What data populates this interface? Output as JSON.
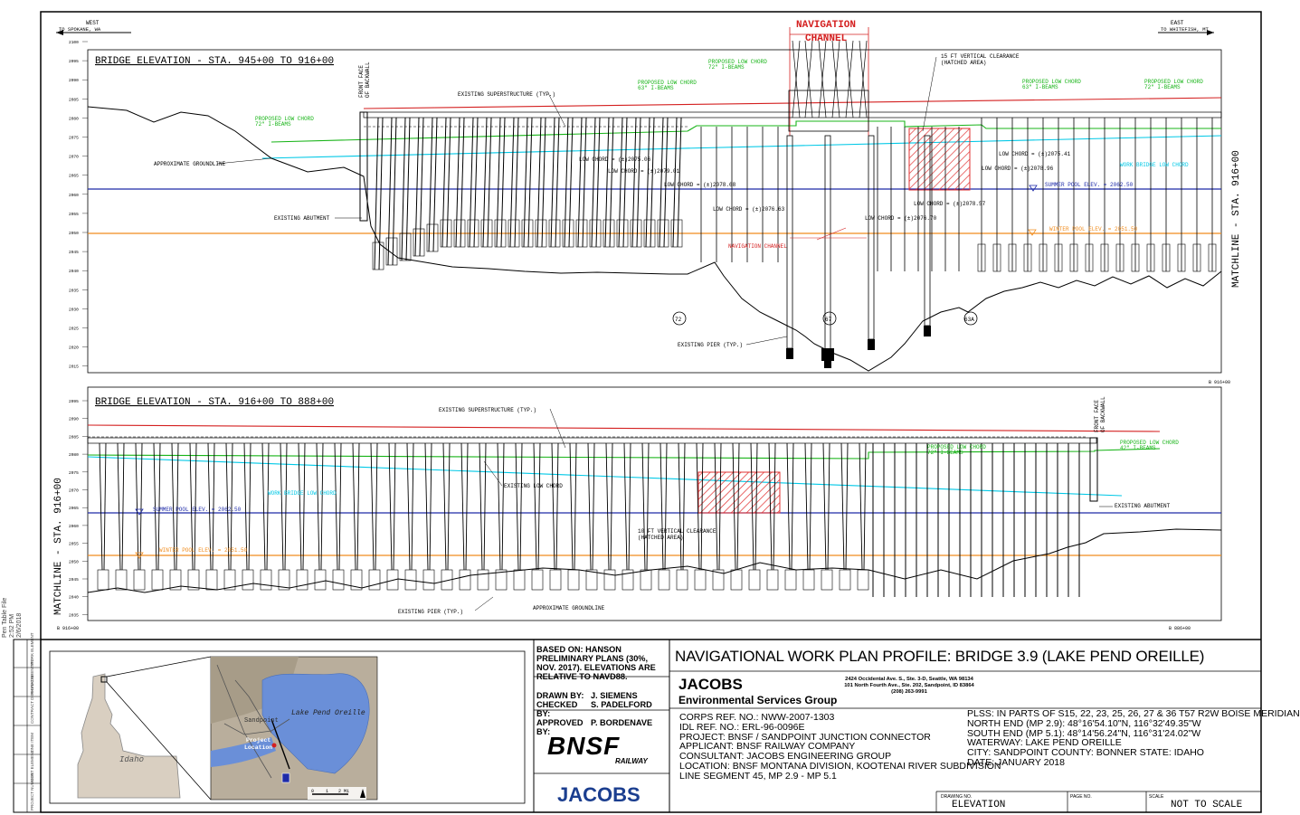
{
  "header": {
    "west_label": "WEST",
    "west_sub": "TO SPOKANE, WA",
    "east_label": "EAST",
    "east_sub": "TO WHITEFISH, MT",
    "nav_channel_header_1": "NAVIGATION",
    "nav_channel_header_2": "CHANNEL"
  },
  "panel1": {
    "title": "BRIDGE ELEVATION - STA. 945+00 TO 916+00",
    "front_face_1": "FRONT FACE",
    "front_face_2": "OF BACKWALL",
    "existing_superstructure": "EXISTING SUPERSTRUCTURE (TYP.)",
    "proposed_low_chord_72_left_1": "PROPOSED LOW CHORD",
    "proposed_low_chord_72_left_2": "72\" I-BEAMS",
    "proposed_low_chord_63_left_1": "PROPOSED LOW CHORD",
    "proposed_low_chord_63_left_2": "63\" I-BEAMS",
    "proposed_low_chord_72_mid_1": "PROPOSED LOW CHORD",
    "proposed_low_chord_72_mid_2": "72\" I-BEAMS",
    "vertical_clearance_1": "15 FT VERTICAL CLEARANCE",
    "vertical_clearance_2": "(HATCHED AREA)",
    "proposed_low_chord_63_right_1": "PROPOSED LOW CHORD",
    "proposed_low_chord_63_right_2": "63\" I-BEAMS",
    "proposed_low_chord_72_right_1": "PROPOSED LOW CHORD",
    "proposed_low_chord_72_right_2": "72\" I-BEAMS",
    "approximate_groundline": "APPROXIMATE GROUNDLINE",
    "existing_abutment": "EXISTING ABUTMENT",
    "low_chord_1": "LOW CHORD = (±)2075.06",
    "low_chord_2": "LOW CHORD = (±)2079.01",
    "low_chord_3": "LOW CHORD = (±)2078.68",
    "low_chord_4": "LOW CHORD = (±)2076.63",
    "low_chord_5": "LOW CHORD = (±)2076.70",
    "low_chord_6": "LOW CHORD = (±)2078.57",
    "low_chord_7": "LOW CHORD = (±)2075.41",
    "low_chord_8": "LOW CHORD = (±)2078.96",
    "work_bridge_low_chord": "WORK BRIDGE LOW CHORD",
    "summer_pool": "SUMMER POOL ELEV. = 2062.50",
    "winter_pool": "WINTER POOL ELEV. = 2051.50",
    "navigation_channel": "NAVIGATION CHANNEL",
    "pier_72": "72",
    "pier_67": "67",
    "pier_63a": "63A",
    "existing_pier": "EXISTING PIER (TYP.)",
    "matchline": "MATCHLINE - STA. 916+00",
    "station_right": "B 916+00",
    "elevations": [
      "2100",
      "2095",
      "2090",
      "2085",
      "2080",
      "2075",
      "2070",
      "2065",
      "2060",
      "2055",
      "2050",
      "2045",
      "2040",
      "2035",
      "2030",
      "2025",
      "2020",
      "2015"
    ]
  },
  "panel2": {
    "title": "BRIDGE ELEVATION - STA. 916+00 TO 888+00",
    "existing_superstructure": "EXISTING SUPERSTRUCTURE (TYP.)",
    "front_face_1": "FRONT FACE",
    "front_face_2": "OF BACKWALL",
    "proposed_low_chord_72_1": "PROPOSED LOW CHORD",
    "proposed_low_chord_72_2": "72\" I-BEAMS",
    "proposed_low_chord_42_1": "PROPOSED LOW CHORD",
    "proposed_low_chord_42_2": "42\" I-BEAMS",
    "work_bridge_low_chord": "WORK BRIDGE LOW CHORD",
    "existing_low_chord": "EXISTING LOW CHORD",
    "existing_abutment": "EXISTING ABUTMENT",
    "summer_pool": "SUMMER POOL ELEV. = 2062.50",
    "winter_pool": "WINTER POOL ELEV. = 2051.50",
    "vertical_clearance_1": "10 FT VERTICAL CLEARANCE",
    "vertical_clearance_2": "(HATCHED AREA)",
    "approximate_groundline": "APPROXIMATE GROUNDLINE",
    "existing_pier": "EXISTING PIER (TYP.)",
    "matchline": "MATCHLINE - STA. 916+00",
    "station_left": "B 916+00",
    "station_right": "B 886+00",
    "elevations": [
      "2095",
      "2090",
      "2085",
      "2080",
      "2075",
      "2070",
      "2065",
      "2060",
      "2055",
      "2050",
      "2045",
      "2040",
      "2035"
    ]
  },
  "map": {
    "sandpoint": "Sandpoint",
    "lake": "Lake Pend Oreille",
    "project_location_1": "Project",
    "project_location_2": "Location",
    "idaho": "Idaho",
    "scale_0": "0",
    "scale_1": "1",
    "scale_2": "2 Mi"
  },
  "title_block": {
    "notes_1": "BASED ON: HANSON",
    "notes_2": "PRELIMINARY PLANS (30%,",
    "notes_3": "NOV. 2017). ELEVATIONS ARE",
    "notes_4": "RELATIVE TO NAVD88.",
    "drawn_by_label": "DRAWN BY:",
    "drawn_by": "J. SIEMENS",
    "checked_by_label": "CHECKED BY:",
    "checked_by": "S. PADELFORD",
    "approved_by_label": "APPROVED BY:",
    "approved_by": "P. BORDENAVE",
    "bnsf": "BNSF",
    "railway": "RAILWAY",
    "jacobs_logo": "JACOBS",
    "main_title": "NAVIGATIONAL WORK PLAN PROFILE: BRIDGE 3.9 (LAKE PEND OREILLE)",
    "company": "JACOBS",
    "company_group": "Environmental Services Group",
    "address_1": "2424 Occidental Ave. S., Ste. 3-D, Seattle, WA 98134",
    "address_2": "101 North Fourth Ave., Ste. 202, Sandpoint, ID 83864",
    "address_3": "(208) 263-9991",
    "corps_ref": "CORPS REF. NO.: NWW-2007-1303",
    "idl_ref": "IDL REF. NO.: ERL-96-0096E",
    "project": "PROJECT: BNSF / SANDPOINT JUNCTION CONNECTOR",
    "applicant": "APPLICANT: BNSF RAILWAY COMPANY",
    "consultant": "CONSULTANT: JACOBS ENGINEERING GROUP",
    "location": "LOCATION: BNSF MONTANA DIVISION, KOOTENAI RIVER SUBDIVISION",
    "line_segment": "LINE SEGMENT 45, MP 2.9 - MP 5.1",
    "plss": "PLSS: IN PARTS OF S15, 22, 23, 25, 26, 27 & 36 T57 R2W BOISE MERIDIAN",
    "north_end": "NORTH END (MP 2.9): 48°16'54.10\"N, 116°32'49.35\"W",
    "south_end": "SOUTH END (MP 5.1): 48°14'56.24\"N, 116°31'24.02\"W",
    "waterway": "WATERWAY: LAKE PEND OREILLE",
    "city": "CITY: SANDPOINT COUNTY: BONNER   STATE: IDAHO",
    "date": "DATE: JANUARY 2018",
    "drawing_no_label": "DRAWING NO.",
    "drawing_no": "ELEVATION",
    "page_no_label": "PAGE NO.",
    "scale_label": "SCALE",
    "scale": "NOT TO SCALE"
  },
  "sidebar": {
    "pen_table_1": "Pen Table File",
    "pen_table_2": "2:52 PM",
    "pen_table_3": "2/6/2018",
    "boxes": [
      "WORK ELEMENT",
      "PHYSICAL ENTITY",
      "CONTRACT DESIGNATOR",
      "LINE ITEM",
      "COST ELEMENT",
      "PROJECT NUMBER"
    ]
  },
  "colors": {
    "existing_chord": "#d42020",
    "proposed_chord": "#18b418",
    "work_bridge": "#00c8e6",
    "summer_pool": "#1d2aa8",
    "winter_pool": "#f08c1e",
    "hatch": "#e03030",
    "jacobs_blue": "#1b3e8f",
    "lake": "#6a8fd8"
  }
}
